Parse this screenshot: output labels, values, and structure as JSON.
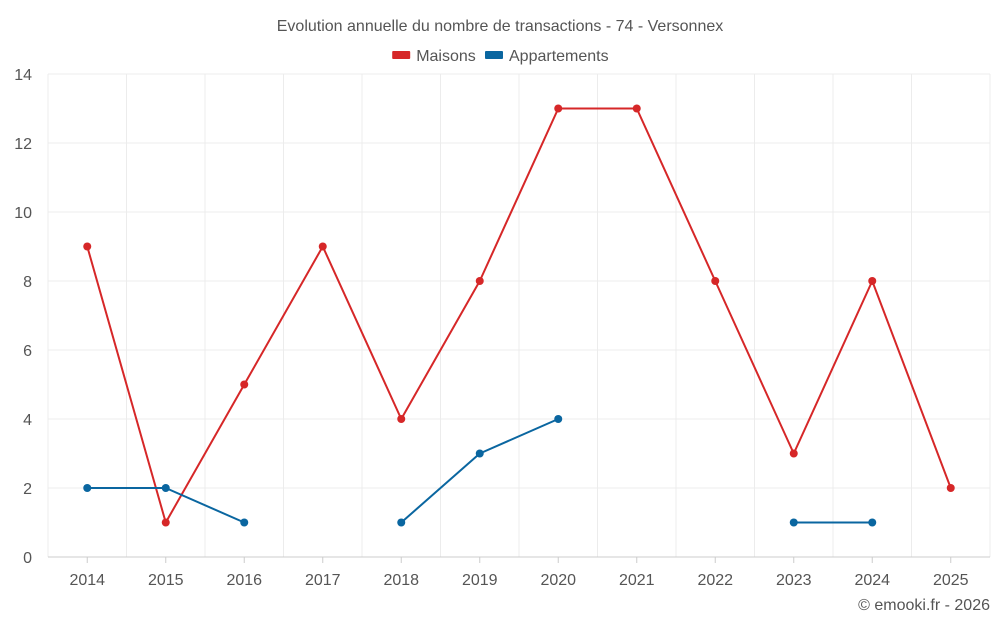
{
  "chart_data": {
    "type": "line",
    "title": "Evolution annuelle du nombre de transactions - 74 - Versonnex",
    "categories": [
      "2014",
      "2015",
      "2016",
      "2017",
      "2018",
      "2019",
      "2020",
      "2021",
      "2022",
      "2023",
      "2024",
      "2025"
    ],
    "series": [
      {
        "name": "Maisons",
        "color": "#d62728",
        "values": [
          9,
          1,
          5,
          9,
          4,
          8,
          13,
          13,
          8,
          3,
          8,
          2
        ]
      },
      {
        "name": "Appartements",
        "color": "#0a66a0",
        "values": [
          2,
          2,
          1,
          null,
          1,
          3,
          4,
          null,
          null,
          1,
          1,
          null
        ]
      }
    ],
    "ylim": [
      0,
      14
    ],
    "yticks": [
      0,
      2,
      4,
      6,
      8,
      10,
      12,
      14
    ],
    "xlabel": "",
    "ylabel": "",
    "grid": true,
    "legend_position": "top-center"
  },
  "credit": "© emooki.fr - 2026"
}
